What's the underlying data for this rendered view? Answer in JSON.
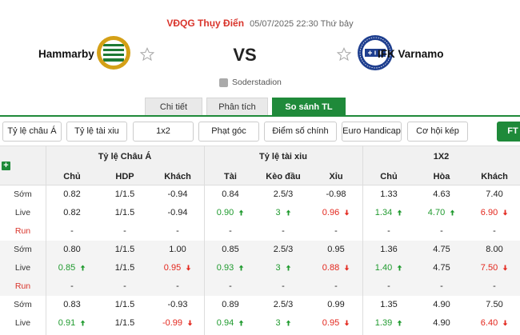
{
  "match": {
    "league": "VĐQG Thụy Điển",
    "datetime": "05/07/2025 22:30 Thứ bảy",
    "home_team": "Hammarby",
    "away_team": "IFK Varnamo",
    "vs": "VS",
    "stadium": "Soderstadion"
  },
  "tabs": [
    {
      "label": "Chi tiết"
    },
    {
      "label": "Phân tích"
    },
    {
      "label": "So sánh TL",
      "active": true
    }
  ],
  "filters": [
    "Tỷ lệ châu Á",
    "Tỷ lệ tài xiu",
    "1x2",
    "Phạt góc",
    "Điểm số chính xác",
    "Euro Handicap",
    "Cơ hội kép",
    "FT"
  ],
  "table": {
    "groups": [
      "Tỷ lệ Châu Á",
      "Tỷ lệ tài xiu",
      "1X2"
    ],
    "columns": [
      "Chủ",
      "HDP",
      "Khách",
      "Tài",
      "Kèo đầu",
      "Xỉu",
      "Chủ",
      "Hòa",
      "Khách"
    ],
    "blocks": [
      {
        "rows": [
          {
            "label": "Sớm",
            "cells": [
              [
                "0.82",
                ""
              ],
              [
                "1/1.5",
                ""
              ],
              [
                "-0.94",
                ""
              ],
              [
                "0.84",
                ""
              ],
              [
                "2.5/3",
                ""
              ],
              [
                "-0.98",
                ""
              ],
              [
                "1.33",
                ""
              ],
              [
                "4.63",
                ""
              ],
              [
                "7.40",
                ""
              ]
            ]
          },
          {
            "label": "Live",
            "cells": [
              [
                "0.82",
                ""
              ],
              [
                "1/1.5",
                ""
              ],
              [
                "-0.94",
                ""
              ],
              [
                "0.90",
                "up"
              ],
              [
                "3",
                "up"
              ],
              [
                "0.96",
                "down"
              ],
              [
                "1.34",
                "up"
              ],
              [
                "4.70",
                "up"
              ],
              [
                "6.90",
                "down"
              ]
            ]
          },
          {
            "label": "Run",
            "cells": [
              [
                "-",
                ""
              ],
              [
                "-",
                ""
              ],
              [
                "-",
                ""
              ],
              [
                "-",
                ""
              ],
              [
                "-",
                ""
              ],
              [
                "-",
                ""
              ],
              [
                "-",
                ""
              ],
              [
                "-",
                ""
              ],
              [
                "-",
                ""
              ]
            ]
          }
        ]
      },
      {
        "rows": [
          {
            "label": "Sớm",
            "cells": [
              [
                "0.80",
                ""
              ],
              [
                "1/1.5",
                ""
              ],
              [
                "1.00",
                ""
              ],
              [
                "0.85",
                ""
              ],
              [
                "2.5/3",
                ""
              ],
              [
                "0.95",
                ""
              ],
              [
                "1.36",
                ""
              ],
              [
                "4.75",
                ""
              ],
              [
                "8.00",
                ""
              ]
            ]
          },
          {
            "label": "Live",
            "cells": [
              [
                "0.85",
                "up"
              ],
              [
                "1/1.5",
                ""
              ],
              [
                "0.95",
                "down"
              ],
              [
                "0.93",
                "up"
              ],
              [
                "3",
                "up"
              ],
              [
                "0.88",
                "down"
              ],
              [
                "1.40",
                "up"
              ],
              [
                "4.75",
                ""
              ],
              [
                "7.50",
                "down"
              ]
            ]
          },
          {
            "label": "Run",
            "cells": [
              [
                "-",
                ""
              ],
              [
                "-",
                ""
              ],
              [
                "-",
                ""
              ],
              [
                "-",
                ""
              ],
              [
                "-",
                ""
              ],
              [
                "-",
                ""
              ],
              [
                "-",
                ""
              ],
              [
                "-",
                ""
              ],
              [
                "-",
                ""
              ]
            ]
          }
        ]
      },
      {
        "rows": [
          {
            "label": "Sớm",
            "cells": [
              [
                "0.83",
                ""
              ],
              [
                "1/1.5",
                ""
              ],
              [
                "-0.93",
                ""
              ],
              [
                "0.89",
                ""
              ],
              [
                "2.5/3",
                ""
              ],
              [
                "0.99",
                ""
              ],
              [
                "1.35",
                ""
              ],
              [
                "4.90",
                ""
              ],
              [
                "7.50",
                ""
              ]
            ]
          },
          {
            "label": "Live",
            "cells": [
              [
                "0.91",
                "up"
              ],
              [
                "1/1.5",
                ""
              ],
              [
                "-0.99",
                "down"
              ],
              [
                "0.94",
                "up"
              ],
              [
                "3",
                "up"
              ],
              [
                "0.95",
                "down"
              ],
              [
                "1.39",
                "up"
              ],
              [
                "4.90",
                ""
              ],
              [
                "6.40",
                "down"
              ]
            ]
          }
        ]
      }
    ]
  },
  "colors": {
    "accent": "#1f8a3a",
    "league": "#d9342b",
    "up": "#1f9a2e",
    "down": "#e3261c"
  }
}
